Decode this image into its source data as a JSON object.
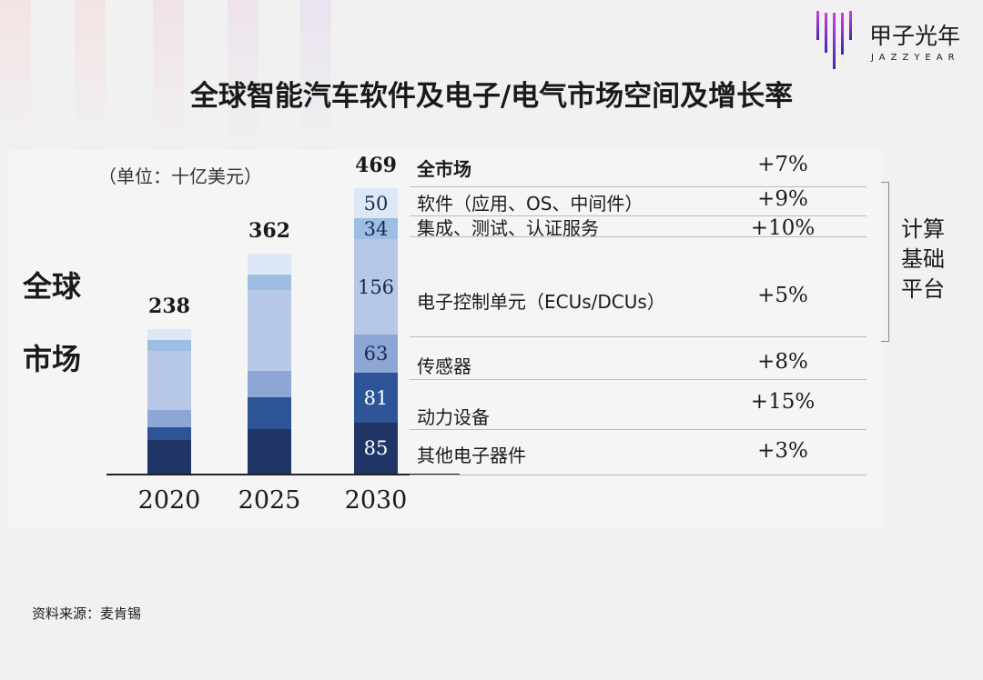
{
  "title": "全球智能汽车软件及电子/电气市场空间及增长率",
  "logo": {
    "cn": "甲子光年",
    "en": "JAZZYEAR"
  },
  "source": "资料来源：麦肯锡",
  "side_label": [
    "全球",
    "市场"
  ],
  "bracket_label": [
    "计算",
    "基础",
    "平台"
  ],
  "chart_data": {
    "type": "bar",
    "stacked": true,
    "unit": "（单位：十亿美元）",
    "categories": [
      "2020",
      "2025",
      "2030"
    ],
    "totals": [
      "238",
      "362",
      "469"
    ],
    "series": [
      {
        "name": "其他电子器件",
        "growth": "+3%",
        "color": "#1f3566",
        "values": [
          57,
          75,
          85
        ]
      },
      {
        "name": "动力设备",
        "growth": "+15%",
        "color": "#2c5496",
        "values": [
          20,
          52,
          81
        ]
      },
      {
        "name": "传感器",
        "growth": "+8%",
        "color": "#8ea6d6",
        "values": [
          28,
          43,
          63
        ]
      },
      {
        "name": "电子控制单元（ECUs/DCUs）",
        "growth": "+5%",
        "color": "#b6c7e7",
        "values": [
          98,
          132,
          156
        ]
      },
      {
        "name": "集成、测试、认证服务",
        "growth": "+10%",
        "color": "#9dbde2",
        "values": [
          17,
          25,
          34
        ]
      },
      {
        "name": "软件（应用、OS、中间件）",
        "growth": "+9%",
        "color": "#dde8f7",
        "values": [
          18,
          35,
          50
        ]
      }
    ],
    "total_row": {
      "name": "全市场",
      "growth": "+7%"
    },
    "labeled_category": "2030"
  }
}
